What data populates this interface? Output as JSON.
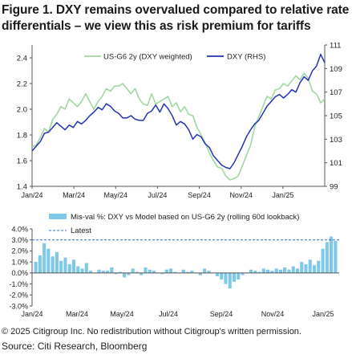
{
  "title": "Figure 1. DXY remains overvalued compared to relative rate differentials – we view this as risk premium for tariffs",
  "colors": {
    "us_g6": "#9fd8a0",
    "dxy": "#2233b5",
    "misval": "#7ec8ea",
    "latest": "#2c6fc0",
    "axis": "#555555"
  },
  "chart_data": [
    {
      "type": "line",
      "x_tick_labels": [
        "Jan/24",
        "Mar/24",
        "May/24",
        "Jul/24",
        "Sep/24",
        "Nov/24",
        "Jan/25"
      ],
      "yleft_ticks": [
        "1.4",
        "1.6",
        "1.8",
        "2.0",
        "2.2",
        "2.4"
      ],
      "yright_ticks": [
        "99",
        "101",
        "103",
        "105",
        "107",
        "109",
        "111"
      ],
      "ylim_left": [
        1.4,
        2.5
      ],
      "ylim_right": [
        99,
        111
      ],
      "legend_position": "top-center",
      "series": [
        {
          "name": "US-G6 2y (DXY weighted)",
          "axis": "left",
          "values": [
            1.71,
            1.72,
            1.78,
            1.85,
            1.82,
            1.92,
            1.96,
            2.02,
            2.0,
            2.08,
            2.05,
            2.02,
            2.06,
            2.12,
            2.06,
            2.0,
            2.06,
            2.1,
            2.16,
            2.14,
            2.18,
            2.18,
            2.2,
            2.16,
            2.12,
            2.16,
            2.08,
            2.04,
            2.03,
            2.12,
            2.04,
            2.06,
            2.08,
            2.1,
            2.02,
            2.05,
            1.98,
            2.02,
            1.96,
            1.95,
            1.86,
            1.8,
            1.74,
            1.66,
            1.6,
            1.55,
            1.54,
            1.48,
            1.45,
            1.46,
            1.48,
            1.56,
            1.64,
            1.72,
            1.86,
            1.94,
            2.02,
            2.1,
            2.08,
            2.15,
            2.16,
            2.2,
            2.18,
            2.22,
            2.26,
            2.23,
            2.28,
            2.24,
            2.14,
            2.12,
            2.05,
            2.08
          ]
        },
        {
          "name": "DXY (RHS)",
          "axis": "right",
          "values": [
            102.0,
            102.4,
            102.8,
            103.5,
            103.6,
            104.0,
            104.4,
            104.1,
            103.8,
            104.2,
            104.0,
            104.5,
            104.3,
            104.6,
            105.0,
            105.3,
            105.7,
            105.5,
            106.0,
            105.8,
            105.4,
            105.2,
            104.8,
            104.8,
            105.0,
            104.7,
            104.6,
            104.6,
            105.2,
            105.4,
            105.9,
            105.3,
            106.0,
            105.6,
            105.0,
            104.2,
            104.5,
            104.3,
            103.8,
            103.0,
            103.4,
            103.2,
            102.6,
            102.3,
            101.6,
            101.2,
            100.8,
            100.6,
            100.5,
            101.0,
            101.7,
            102.4,
            103.2,
            103.8,
            104.3,
            104.6,
            105.2,
            105.8,
            106.2,
            106.6,
            106.8,
            106.5,
            106.8,
            107.2,
            107.0,
            107.8,
            108.3,
            108.0,
            108.8,
            109.2,
            110.2,
            109.5
          ]
        }
      ]
    },
    {
      "type": "bar",
      "x_tick_labels": [
        "Jan/24",
        "Mar/24",
        "May/24",
        "Jul/24",
        "Sep/24",
        "Nov/24",
        "Jan/25"
      ],
      "y_ticks": [
        "-3.0%",
        "-2.0%",
        "-1.0%",
        "0.0%",
        "1.0%",
        "2.0%",
        "3.0%",
        "4.0%"
      ],
      "ylim": [
        -3.0,
        4.0
      ],
      "legend_position": "top-right",
      "series": [
        {
          "name": "Mis-val %: DXY vs Model based on US-G6 2y (rolling 60d lookback)",
          "values": [
            1.0,
            1.6,
            2.7,
            2.2,
            1.5,
            1.9,
            1.1,
            1.4,
            0.8,
            1.2,
            0.6,
            0.4,
            0.9,
            0.2,
            0.0,
            0.3,
            0.2,
            0.2,
            0.5,
            -0.1,
            0.1,
            -0.4,
            -0.2,
            0.4,
            0.1,
            -0.2,
            0.5,
            0.3,
            0.2,
            0.0,
            -0.1,
            0.3,
            0.4,
            0.1,
            0.0,
            0.3,
            0.1,
            0.2,
            0.0,
            -0.2,
            0.4,
            0.2,
            0.0,
            -0.3,
            -0.6,
            -1.0,
            -1.4,
            -0.8,
            -0.6,
            -0.2,
            0.0,
            0.3,
            0.2,
            0.1,
            0.4,
            0.3,
            0.2,
            0.4,
            0.3,
            0.5,
            0.3,
            0.6,
            0.4,
            1.0,
            0.8,
            1.2,
            0.7,
            1.1,
            2.2,
            2.8,
            3.3,
            2.9
          ]
        }
      ],
      "latest": {
        "name": "Latest",
        "value": 3.0
      }
    }
  ],
  "footer": {
    "copyright": "© 2025 Citigroup Inc. No redistribution without Citigroup's written permission.",
    "source": "Source: Citi Research, Bloomberg"
  }
}
